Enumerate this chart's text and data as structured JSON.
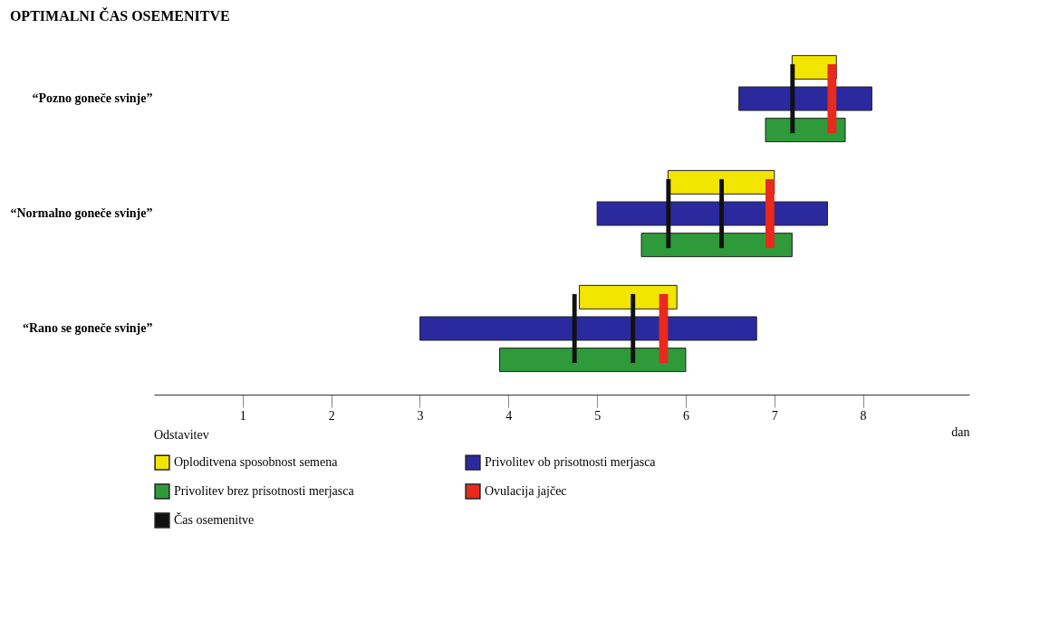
{
  "chart_data": {
    "type": "bar",
    "orientation": "horizontal",
    "title": "OPTIMALNI ČAS OSEMENITVE",
    "xlabel": "dan",
    "categories": [
      "“Pozno goneče svinje”",
      "“Normalno goneče svinje”",
      "“Rano se goneče svinje”"
    ],
    "series": [
      {
        "name": "Oploditvena sposobnost semena",
        "color": "#f2e600",
        "base": [
          7.2,
          5.8,
          4.8
        ],
        "values": [
          0.5,
          1.2,
          1.1
        ]
      },
      {
        "name": "Privolitev ob prisotnosti merjasca",
        "color": "#2a2a9e",
        "base": [
          6.6,
          5.0,
          3.0
        ],
        "values": [
          1.5,
          2.6,
          3.8
        ]
      },
      {
        "name": "Privolitev brez prisotnosti merjasca",
        "color": "#2e9a3a",
        "base": [
          6.9,
          5.5,
          3.9
        ],
        "values": [
          0.9,
          1.7,
          2.1
        ]
      },
      {
        "name": "Ovulacija jajčec",
        "type": "bar",
        "color": "#e8291c",
        "base": [
          7.6,
          6.9,
          5.7
        ],
        "values": [
          0.1,
          0.1,
          0.1
        ]
      },
      {
        "name": "Čas osemenitve",
        "type": "bar",
        "color": "#111111",
        "base": [
          7.18,
          5.78,
          4.72
        ],
        "values": [
          0.05,
          0.05,
          0.05
        ]
      },
      {
        "type": "bar",
        "color": "#111111",
        "base": [
          null,
          6.38,
          5.38
        ],
        "values": [
          null,
          0.05,
          0.05
        ]
      }
    ],
    "xlim": [
      0,
      9.2
    ],
    "xticks": [
      1,
      2,
      3,
      4,
      5,
      6,
      7,
      8
    ],
    "grid": false,
    "legend": "bottom",
    "annotations": [
      "Odstavitev"
    ]
  }
}
